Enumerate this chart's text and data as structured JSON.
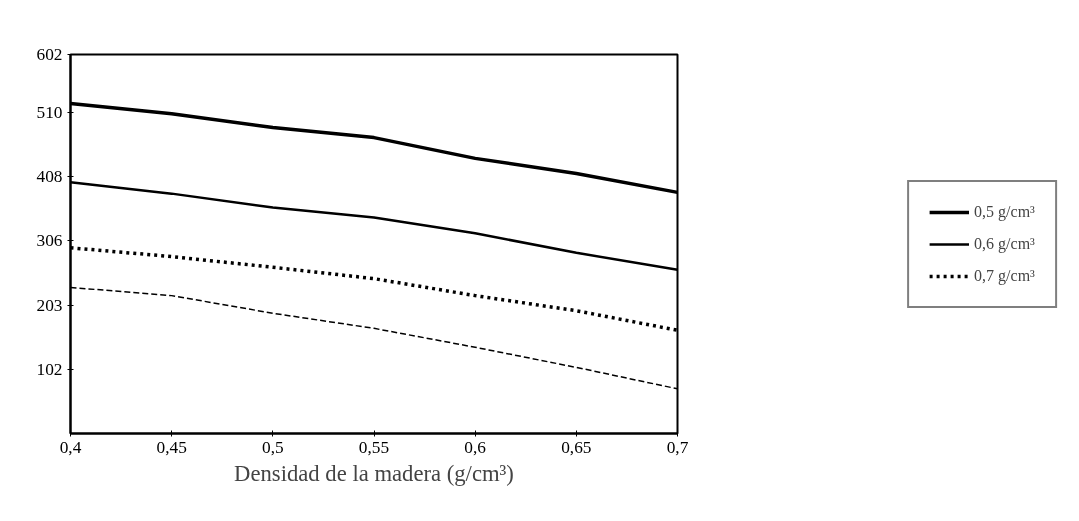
{
  "chart_data": {
    "type": "line",
    "xlabel": "Densidad de la madera (g/cm³)",
    "x": [
      0.4,
      0.45,
      0.5,
      0.55,
      0.6,
      0.65,
      0.7
    ],
    "series": [
      {
        "name": "0,5 g/cm³",
        "color": "#000000",
        "line_style": "solid",
        "values": [
          524,
          508,
          486,
          470,
          437,
          413,
          383
        ]
      },
      {
        "name": "0,6 g/cm³",
        "color": "#000000",
        "line_style": "solid",
        "values": [
          399,
          381,
          359,
          343,
          318,
          287,
          260
        ]
      },
      {
        "name": "0,7 g/cm³",
        "color": "#000000",
        "line_style": "dotted",
        "values": [
          295,
          281,
          264,
          246,
          219,
          195,
          164
        ]
      },
      {
        "color": "#000000",
        "line_style": "dashed",
        "values": [
          232,
          219,
          191,
          167,
          137,
          105,
          71
        ]
      }
    ],
    "xlim": [
      0.4,
      0.7
    ],
    "xticks": [
      {
        "value": 0.4,
        "label": "0,4"
      },
      {
        "value": 0.45,
        "label": "0,45"
      },
      {
        "value": 0.5,
        "label": "0,5"
      },
      {
        "value": 0.55,
        "label": "0,55"
      },
      {
        "value": 0.6,
        "label": "0,6"
      },
      {
        "value": 0.65,
        "label": "0,65"
      },
      {
        "value": 0.7,
        "label": "0,7"
      }
    ],
    "ylim": [
      0,
      602
    ],
    "yticks": [
      102,
      203,
      306,
      408,
      510,
      602
    ],
    "grid": false,
    "legend": "right",
    "marker": "none"
  }
}
